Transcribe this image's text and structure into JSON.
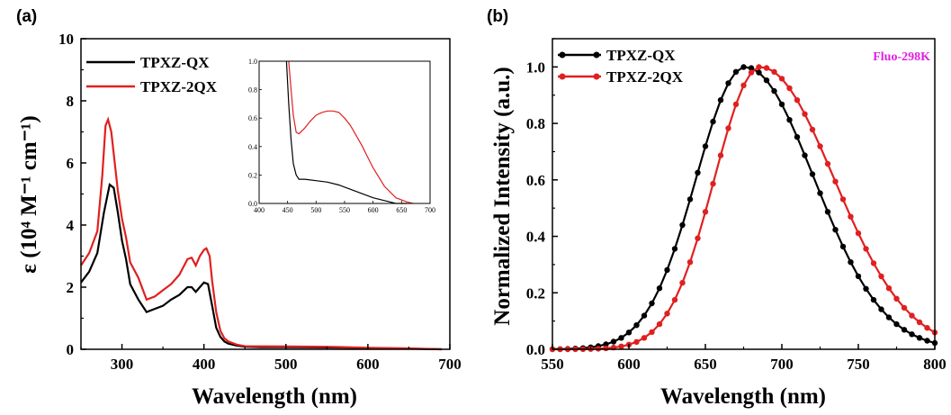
{
  "chart_data": [
    {
      "type": "line",
      "panel_label": "(a)",
      "xlabel": "Wavelength (nm)",
      "ylabel": "ε (10⁴ M⁻¹ cm⁻¹)",
      "xlim": [
        250,
        700
      ],
      "ylim": [
        0,
        10
      ],
      "xticks": [
        300,
        400,
        500,
        600,
        700
      ],
      "yticks": [
        0,
        2,
        4,
        6,
        8,
        10
      ],
      "legend_position": "top-left",
      "grid": false,
      "series": [
        {
          "name": "TPXZ-QX",
          "color": "#000000",
          "x": [
            250,
            260,
            270,
            278,
            285,
            290,
            295,
            300,
            305,
            310,
            320,
            330,
            340,
            350,
            360,
            370,
            380,
            385,
            390,
            395,
            400,
            405,
            410,
            415,
            420,
            425,
            430,
            440,
            450,
            470,
            500,
            550,
            600,
            650,
            690
          ],
          "y": [
            2.15,
            2.5,
            3.1,
            4.4,
            5.3,
            5.2,
            4.4,
            3.5,
            2.9,
            2.1,
            1.6,
            1.2,
            1.3,
            1.4,
            1.6,
            1.75,
            2.0,
            2.0,
            1.85,
            2.0,
            2.15,
            2.1,
            1.4,
            0.7,
            0.4,
            0.25,
            0.18,
            0.12,
            0.08,
            0.07,
            0.07,
            0.06,
            0.04,
            0.02,
            0.0
          ]
        },
        {
          "name": "TPXZ-2QX",
          "color": "#e02020",
          "x": [
            250,
            260,
            270,
            276,
            280,
            283,
            287,
            290,
            295,
            300,
            305,
            310,
            320,
            330,
            340,
            350,
            360,
            370,
            380,
            385,
            390,
            395,
            400,
            403,
            407,
            410,
            415,
            420,
            425,
            430,
            440,
            450,
            500,
            550,
            600,
            650,
            690
          ],
          "y": [
            2.7,
            3.1,
            3.8,
            5.6,
            7.2,
            7.4,
            7.0,
            6.3,
            5.1,
            4.2,
            3.6,
            2.8,
            2.3,
            1.6,
            1.7,
            1.9,
            2.1,
            2.4,
            2.9,
            2.95,
            2.7,
            3.0,
            3.2,
            3.25,
            3.0,
            2.2,
            1.2,
            0.6,
            0.35,
            0.25,
            0.15,
            0.1,
            0.09,
            0.08,
            0.05,
            0.03,
            0.0
          ]
        }
      ],
      "inset": {
        "xlim": [
          400,
          700
        ],
        "ylim": [
          0,
          1.0
        ],
        "xticks": [
          400,
          450,
          500,
          550,
          600,
          650,
          700
        ],
        "yticks": [
          0.0,
          0.2,
          0.4,
          0.6,
          0.8,
          1.0
        ],
        "series": [
          {
            "name": "TPXZ-QX",
            "x": [
              448,
              452,
              456,
              460,
              465,
              470,
              480,
              500,
              520,
              540,
              560,
              580,
              600,
              620,
              640,
              660
            ],
            "y": [
              1.0,
              0.7,
              0.45,
              0.28,
              0.2,
              0.17,
              0.17,
              0.16,
              0.15,
              0.13,
              0.1,
              0.07,
              0.04,
              0.02,
              0.0,
              0.0
            ]
          },
          {
            "name": "TPXZ-2QX",
            "x": [
              452,
              456,
              460,
              465,
              470,
              480,
              490,
              500,
              510,
              520,
              530,
              540,
              550,
              560,
              570,
              580,
              590,
              600,
              620,
              640,
              660,
              670
            ],
            "y": [
              1.0,
              0.8,
              0.62,
              0.5,
              0.49,
              0.53,
              0.58,
              0.62,
              0.64,
              0.65,
              0.65,
              0.64,
              0.6,
              0.55,
              0.48,
              0.41,
              0.33,
              0.25,
              0.12,
              0.04,
              0.01,
              0.0
            ]
          }
        ]
      }
    },
    {
      "type": "line",
      "panel_label": "(b)",
      "xlabel": "Wavelength (nm)",
      "ylabel": "Normalized Intensity (a.u.)",
      "xlim": [
        550,
        800
      ],
      "ylim": [
        0,
        1.1
      ],
      "xticks": [
        550,
        600,
        650,
        700,
        750,
        800
      ],
      "yticks": [
        0.0,
        0.2,
        0.4,
        0.6,
        0.8,
        1.0
      ],
      "legend_position": "top-left",
      "grid": false,
      "annotation": {
        "text": "Fluo-298K",
        "color": "#e020e0"
      },
      "series": [
        {
          "name": "TPXZ-QX",
          "color": "#000000",
          "center": 676,
          "sigma_left": 32,
          "sigma_right": 45
        },
        {
          "name": "TPXZ-2QX",
          "color": "#e02020",
          "center": 686,
          "sigma_left": 30,
          "sigma_right": 48
        }
      ]
    }
  ]
}
